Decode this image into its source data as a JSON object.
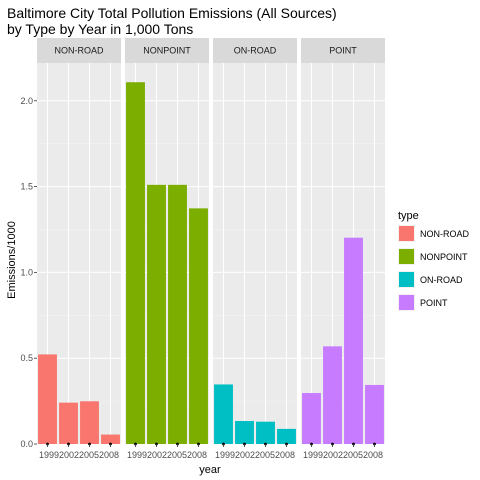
{
  "chart_data": {
    "type": "bar",
    "title_line1": "Baltimore City Total Pollution Emissions (All Sources)",
    "title_line2": "by Type by Year in 1,000 Tons",
    "xlabel": "year",
    "ylabel": "Emissions/1000",
    "ylim": [
      0,
      2.22
    ],
    "yticks": [
      "0.0",
      "0.5",
      "1.0",
      "1.5",
      "2.0"
    ],
    "ytick_values": [
      0,
      0.5,
      1.0,
      1.5,
      2.0
    ],
    "categories": [
      "1999",
      "2002",
      "2005",
      "2008"
    ],
    "facet_x_tick_text": "1999200220052008",
    "grid": true,
    "legend_title": "type",
    "legend_position": "right",
    "facets": [
      {
        "name": "NON-ROAD",
        "color": "#F8766D",
        "values": [
          0.522,
          0.241,
          0.249,
          0.055
        ]
      },
      {
        "name": "NONPOINT",
        "color": "#7CAE00",
        "values": [
          2.108,
          1.51,
          1.51,
          1.373
        ]
      },
      {
        "name": "ON-ROAD",
        "color": "#00BFC4",
        "values": [
          0.347,
          0.134,
          0.13,
          0.088
        ]
      },
      {
        "name": "POINT",
        "color": "#C77CFF",
        "values": [
          0.297,
          0.569,
          1.202,
          0.344
        ]
      }
    ]
  }
}
